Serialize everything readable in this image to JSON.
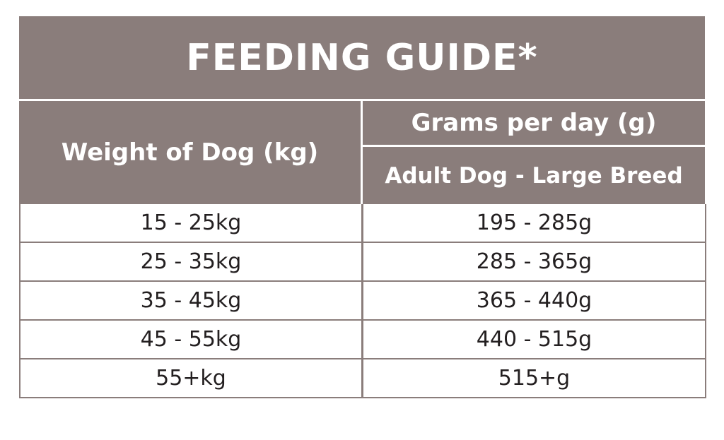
{
  "title": "FEEDING GUIDE*",
  "headers": {
    "weight": "Weight of Dog (kg)",
    "grams": "Grams per day (g)",
    "subheader": "Adult Dog - Large Breed"
  },
  "rows": [
    {
      "weight": "15 - 25kg",
      "grams": "195 - 285g"
    },
    {
      "weight": "25 - 35kg",
      "grams": "285 - 365g"
    },
    {
      "weight": "35 - 45kg",
      "grams": "365 - 440g"
    },
    {
      "weight": "45 - 55kg",
      "grams": "440 - 515g"
    },
    {
      "weight": "55+kg",
      "grams": "515+g"
    }
  ],
  "colors": {
    "header_bg": "#8a7d7b",
    "header_text": "#ffffff",
    "cell_text": "#231f20"
  }
}
